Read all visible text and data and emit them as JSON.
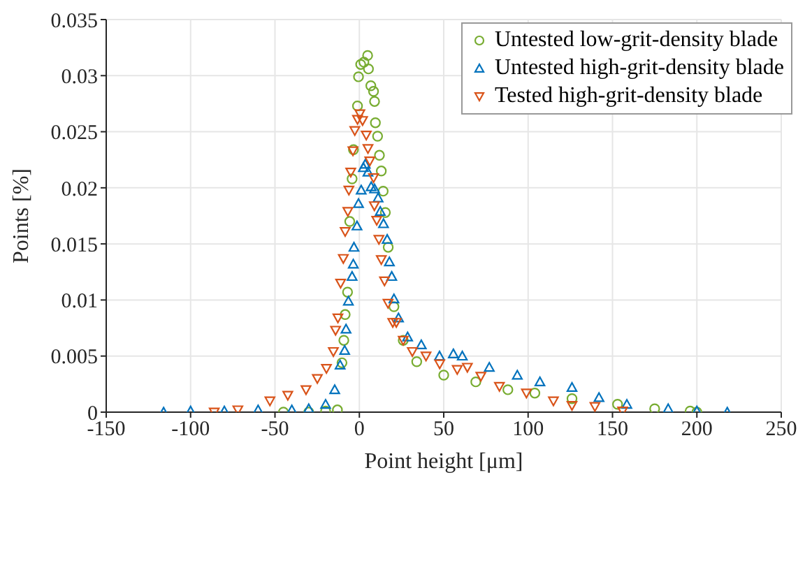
{
  "chart_data": {
    "type": "scatter",
    "xlabel": "Point height [μm]",
    "ylabel": "Points [%]",
    "xlim": [
      -150,
      250
    ],
    "xticks": [
      -150,
      -100,
      -50,
      0,
      50,
      100,
      150,
      200,
      250
    ],
    "ylim": [
      0,
      0.035
    ],
    "yticks": [
      0,
      0.005,
      0.01,
      0.015,
      0.02,
      0.025,
      0.03,
      0.035
    ],
    "grid": true,
    "legend": "top right",
    "series": [
      {
        "name": "Untested low-grit-density blade",
        "color": "#77ac30",
        "marker": "circle",
        "x": [
          -45,
          -30,
          -20,
          -13,
          -10.3,
          -9.2,
          -8.4,
          -7,
          -5.7,
          -4.3,
          -3.5,
          -1.1,
          -0.5,
          0.8,
          2.7,
          4.9,
          5.4,
          6.8,
          8.4,
          9,
          9.5,
          10.8,
          11.9,
          13,
          14.1,
          15.4,
          17.1,
          20.5,
          26,
          34,
          50,
          69,
          88,
          104,
          126,
          153,
          175,
          196,
          200
        ],
        "values": [
          0,
          0,
          0.0001,
          0.0002,
          0.0044,
          0.0064,
          0.0087,
          0.0107,
          0.017,
          0.0208,
          0.0234,
          0.0273,
          0.0299,
          0.031,
          0.0312,
          0.0318,
          0.0306,
          0.0291,
          0.0286,
          0.0277,
          0.0258,
          0.0246,
          0.0229,
          0.0215,
          0.0197,
          0.0178,
          0.0147,
          0.0094,
          0.0064,
          0.0045,
          0.0033,
          0.0027,
          0.002,
          0.0017,
          0.0012,
          0.0007,
          0.0003,
          0.0001,
          0
        ]
      },
      {
        "name": "Untested high-grit-density blade",
        "color": "#0072bd",
        "marker": "triangle",
        "x": [
          -116,
          -100,
          -80,
          -60,
          -40,
          -30,
          -20,
          -14.6,
          -11.4,
          -8.7,
          -7.9,
          -6.5,
          -4.3,
          -3.6,
          -3.2,
          -1.4,
          -0.5,
          1.1,
          2.4,
          3.5,
          5.1,
          7,
          9,
          11.1,
          12.4,
          14.3,
          16.5,
          17.8,
          19.2,
          20.5,
          23.2,
          28.6,
          36.7,
          47.5,
          55.7,
          61,
          77,
          93.6,
          107,
          126,
          142,
          158.5,
          183,
          200,
          218
        ],
        "values": [
          0,
          0.0001,
          0.0001,
          0.0002,
          0.0002,
          0.0003,
          0.0007,
          0.002,
          0.0042,
          0.0055,
          0.0074,
          0.0099,
          0.0121,
          0.0132,
          0.0147,
          0.0166,
          0.0186,
          0.0198,
          0.0218,
          0.0221,
          0.0214,
          0.0201,
          0.0199,
          0.0191,
          0.0179,
          0.0168,
          0.0154,
          0.0134,
          0.0121,
          0.0101,
          0.0084,
          0.0067,
          0.006,
          0.005,
          0.0052,
          0.005,
          0.004,
          0.0033,
          0.0027,
          0.0022,
          0.0013,
          0.0007,
          0.0003,
          0.0001,
          0
        ]
      },
      {
        "name": "Tested high-grit-density blade",
        "color": "#d95319",
        "marker": "triangle-down",
        "x": [
          -86,
          -72,
          -53,
          -42.4,
          -31.6,
          -24.9,
          -19.5,
          -15.4,
          -14.1,
          -12.7,
          -11.1,
          -9.5,
          -8.4,
          -6.8,
          -6.2,
          -5.1,
          -3.8,
          -2.7,
          -1.1,
          0.3,
          1.9,
          4.1,
          5.1,
          6.2,
          8.4,
          8.9,
          10.3,
          11.6,
          13,
          14.9,
          17,
          19.8,
          21.9,
          26,
          31.4,
          39.5,
          47.6,
          58,
          64,
          72,
          83,
          99,
          115,
          126,
          139.6,
          156
        ],
        "values": [
          0,
          0.0002,
          0.001,
          0.0015,
          0.002,
          0.003,
          0.0039,
          0.0054,
          0.0073,
          0.0084,
          0.0115,
          0.0137,
          0.0161,
          0.0179,
          0.0198,
          0.0214,
          0.0233,
          0.0251,
          0.0261,
          0.0266,
          0.026,
          0.0247,
          0.0235,
          0.0224,
          0.0209,
          0.0184,
          0.0171,
          0.0154,
          0.0136,
          0.0117,
          0.0097,
          0.008,
          0.008,
          0.0064,
          0.0054,
          0.005,
          0.0043,
          0.0038,
          0.004,
          0.0032,
          0.0023,
          0.0017,
          0.001,
          0.0006,
          0.0005,
          0.0001
        ]
      }
    ]
  }
}
